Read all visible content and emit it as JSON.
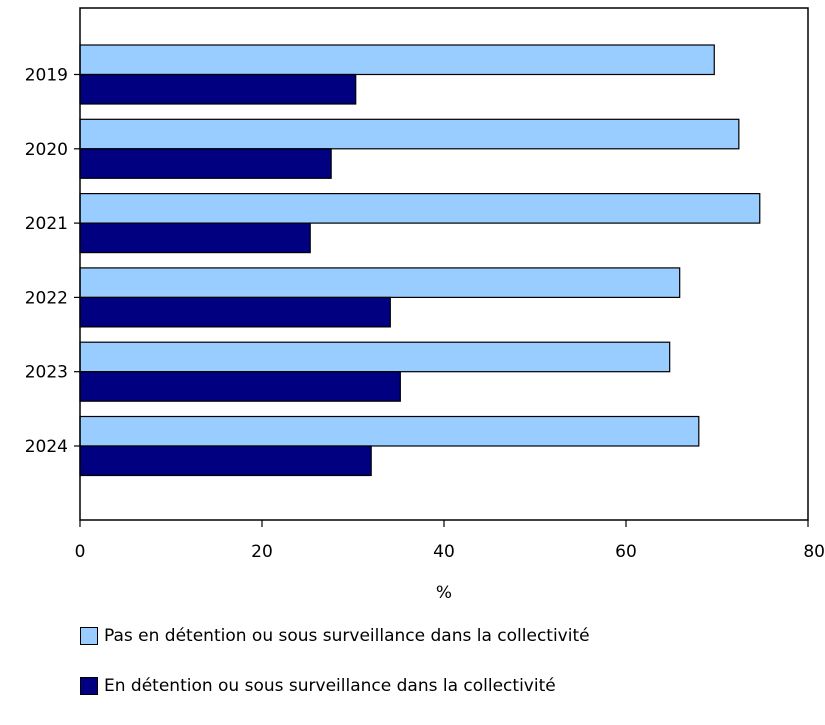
{
  "chart_data": {
    "type": "bar",
    "orientation": "horizontal",
    "categories": [
      "2019",
      "2020",
      "2021",
      "2022",
      "2023",
      "2024"
    ],
    "series": [
      {
        "name": "Pas en détention ou sous surveillance dans la collectivité",
        "color": "#99ccff",
        "values": [
          69.7,
          72.4,
          74.7,
          65.9,
          64.8,
          68.0
        ]
      },
      {
        "name": "En détention ou sous surveillance dans la collectivité",
        "color": "#000080",
        "values": [
          30.3,
          27.6,
          25.3,
          34.1,
          35.2,
          32.0
        ]
      }
    ],
    "xlabel": "%",
    "xlim": [
      0,
      80
    ],
    "xticks": [
      "0",
      "20",
      "40",
      "60",
      "80"
    ],
    "grid": false,
    "legend_position": "bottom"
  }
}
